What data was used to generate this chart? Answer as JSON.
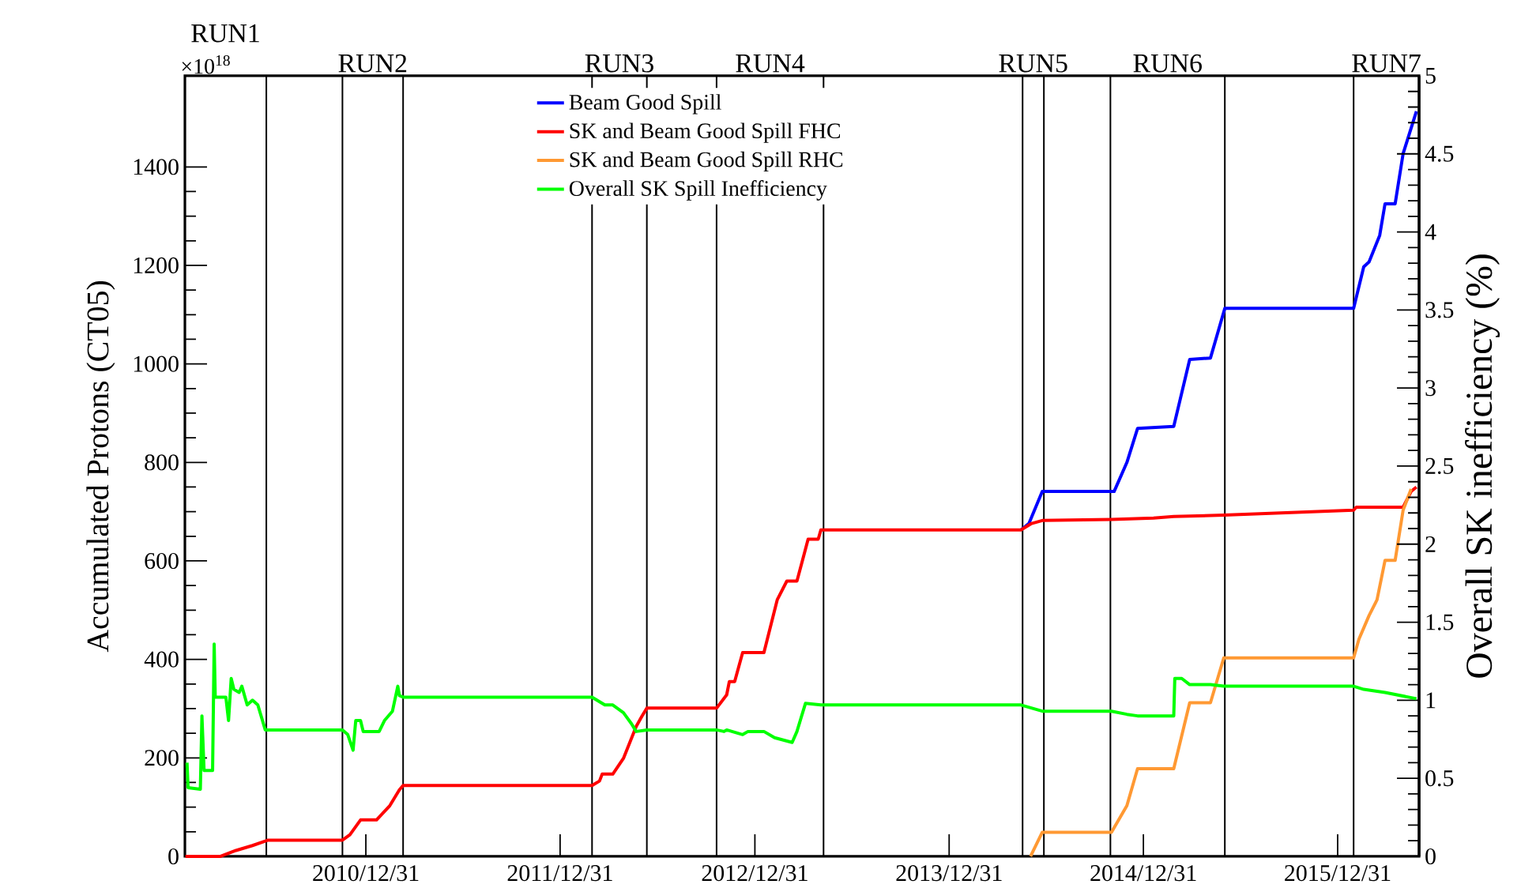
{
  "chart_data": {
    "type": "line",
    "ylabel": "Accumulated Protons (CT05)",
    "y2label": "Overall SK inefficiency (%)",
    "annotations": [
      "×10$^{18}$",
      "RUN1",
      "RUN2",
      "RUN3",
      "RUN4",
      "RUN5",
      "RUN6",
      "RUN7"
    ],
    "xlim": [
      "2010-01-25",
      "2016-06-01"
    ],
    "xticks": [
      {
        "value": "2010-12-31",
        "label": "2010/12/31"
      },
      {
        "value": "2011-12-31",
        "label": "2011/12/31"
      },
      {
        "value": "2012-12-31",
        "label": "2012/12/31"
      },
      {
        "value": "2013-12-31",
        "label": "2013/12/31"
      },
      {
        "value": "2014-12-31",
        "label": "2014/12/31"
      },
      {
        "value": "2015-12-31",
        "label": "2015/12/31"
      }
    ],
    "ylim": [
      0,
      1585
    ],
    "yticks": [
      0,
      200,
      400,
      600,
      800,
      1000,
      1200,
      1400
    ],
    "y2lim": [
      0,
      5
    ],
    "y2ticks": [
      0,
      0.5,
      1,
      1.5,
      2,
      2.5,
      3,
      3.5,
      4,
      4.5,
      5
    ],
    "legend": "top",
    "ref_lines": [
      {
        "axis": "x",
        "value": "2010-06-27",
        "color": "#000000"
      },
      {
        "axis": "x",
        "value": "2010-11-17",
        "color": "#000000"
      },
      {
        "axis": "x",
        "value": "2011-03-11",
        "color": "#000000"
      },
      {
        "axis": "x",
        "value": "2012-02-29",
        "color": "#000000"
      },
      {
        "axis": "x",
        "value": "2012-06-11",
        "color": "#000000"
      },
      {
        "axis": "x",
        "value": "2012-10-20",
        "color": "#000000"
      },
      {
        "axis": "x",
        "value": "2013-05-09",
        "color": "#000000"
      },
      {
        "axis": "x",
        "value": "2014-05-18",
        "color": "#000000"
      },
      {
        "axis": "x",
        "value": "2014-06-27",
        "color": "#000000"
      },
      {
        "axis": "x",
        "value": "2014-10-30",
        "color": "#000000"
      },
      {
        "axis": "x",
        "value": "2015-06-02",
        "color": "#000000"
      },
      {
        "axis": "x",
        "value": "2016-01-30",
        "color": "#000000"
      }
    ],
    "series": [
      {
        "name": "Beam Good Spill",
        "color": "#0000ff",
        "axis": "y",
        "x": [
          "2014-05-15",
          "2014-05-30",
          "2014-06-24",
          "2014-11-06",
          "2014-11-30",
          "2014-12-20",
          "2015-02-26",
          "2015-03-28",
          "2015-05-06",
          "2015-06-02",
          "2016-01-30",
          "2016-02-18",
          "2016-02-28",
          "2016-03-19",
          "2016-03-29",
          "2016-04-17",
          "2016-05-02",
          "2016-05-27"
        ],
        "values": [
          663,
          676,
          741,
          741,
          800,
          869,
          873,
          1009,
          1012,
          1113,
          1113,
          1197,
          1207,
          1261,
          1325,
          1325,
          1427,
          1513
        ]
      },
      {
        "name": "SK and Beam Good Spill FHC",
        "color": "#ff0000",
        "axis": "y",
        "x": [
          "2010-01-26",
          "2010-04-02",
          "2010-05-01",
          "2010-06-01",
          "2010-06-25",
          "2010-06-30",
          "2010-11-17",
          "2010-12-01",
          "2010-12-21",
          "2011-01-20",
          "2011-02-14",
          "2011-03-04",
          "2011-03-11",
          "2012-02-29",
          "2012-03-14",
          "2012-03-19",
          "2012-04-08",
          "2012-04-28",
          "2012-05-22",
          "2012-06-02",
          "2012-06-11",
          "2012-10-20",
          "2012-11-08",
          "2012-11-13",
          "2012-11-23",
          "2012-12-08",
          "2013-01-17",
          "2013-02-11",
          "2013-03-01",
          "2013-03-20",
          "2013-04-10",
          "2013-04-29",
          "2013-05-04",
          "2014-05-15",
          "2014-06-04",
          "2014-06-24",
          "2014-11-01",
          "2015-01-19",
          "2015-02-26",
          "2015-05-31",
          "2016-01-30",
          "2016-02-04",
          "2016-05-02",
          "2016-05-17",
          "2016-05-27"
        ],
        "values": [
          0,
          0,
          12,
          22,
          31,
          33,
          33,
          44,
          74,
          74,
          103,
          135,
          144,
          144,
          153,
          167,
          167,
          199,
          264,
          285,
          301,
          301,
          328,
          355,
          355,
          414,
          414,
          521,
          559,
          559,
          644,
          644,
          663,
          663,
          676,
          682,
          684,
          687,
          690,
          693,
          703,
          709,
          709,
          741,
          750
        ]
      },
      {
        "name": "SK and Beam Good Spill RHC",
        "color": "#ff9933",
        "axis": "y",
        "x": [
          "2014-06-02",
          "2014-06-24",
          "2014-11-01",
          "2014-11-30",
          "2014-12-20",
          "2015-02-26",
          "2015-03-28",
          "2015-05-06",
          "2015-05-31",
          "2016-01-30",
          "2016-02-09",
          "2016-02-28",
          "2016-03-14",
          "2016-03-29",
          "2016-04-17",
          "2016-05-02",
          "2016-05-17"
        ],
        "values": [
          0,
          49,
          49,
          103,
          178,
          178,
          312,
          312,
          403,
          403,
          441,
          489,
          521,
          601,
          601,
          703,
          746
        ]
      },
      {
        "name": "Overall SK Spill Inefficiency",
        "color": "#00ff00",
        "axis": "y2",
        "x": [
          "2010-01-29",
          "2010-01-31",
          "2010-02-23",
          "2010-02-26",
          "2010-03-02",
          "2010-03-18",
          "2010-03-21",
          "2010-03-23",
          "2010-04-12",
          "2010-04-17",
          "2010-04-22",
          "2010-04-27",
          "2010-05-07",
          "2010-05-12",
          "2010-05-22",
          "2010-06-01",
          "2010-06-11",
          "2010-06-25",
          "2010-11-17",
          "2010-11-27",
          "2010-12-07",
          "2010-12-12",
          "2010-12-21",
          "2010-12-26",
          "2011-01-25",
          "2011-02-04",
          "2011-02-19",
          "2011-03-01",
          "2011-03-04",
          "2011-03-11",
          "2012-02-29",
          "2012-03-24",
          "2012-04-08",
          "2012-04-28",
          "2012-05-13",
          "2012-05-22",
          "2012-06-11",
          "2012-10-20",
          "2012-11-03",
          "2012-11-08",
          "2012-12-08",
          "2012-12-18",
          "2013-01-17",
          "2013-02-06",
          "2013-03-11",
          "2013-03-20",
          "2013-04-05",
          "2013-05-04",
          "2014-05-15",
          "2014-06-24",
          "2014-11-01",
          "2014-11-30",
          "2014-12-20",
          "2015-02-26",
          "2015-02-28",
          "2015-03-13",
          "2015-03-28",
          "2015-05-06",
          "2015-05-31",
          "2016-01-30",
          "2016-02-18",
          "2016-03-29",
          "2016-05-27"
        ],
        "values": [
          0.6,
          0.44,
          0.43,
          0.9,
          0.55,
          0.55,
          1.36,
          1.02,
          1.02,
          0.87,
          1.14,
          1.07,
          1.05,
          1.09,
          0.97,
          1.0,
          0.97,
          0.81,
          0.81,
          0.78,
          0.68,
          0.87,
          0.87,
          0.8,
          0.8,
          0.87,
          0.93,
          1.09,
          1.03,
          1.02,
          1.02,
          0.97,
          0.97,
          0.92,
          0.85,
          0.8,
          0.81,
          0.81,
          0.8,
          0.81,
          0.78,
          0.8,
          0.8,
          0.76,
          0.73,
          0.8,
          0.98,
          0.97,
          0.97,
          0.93,
          0.93,
          0.91,
          0.9,
          0.9,
          1.14,
          1.14,
          1.1,
          1.1,
          1.09,
          1.09,
          1.07,
          1.05,
          1.01
        ]
      }
    ]
  }
}
